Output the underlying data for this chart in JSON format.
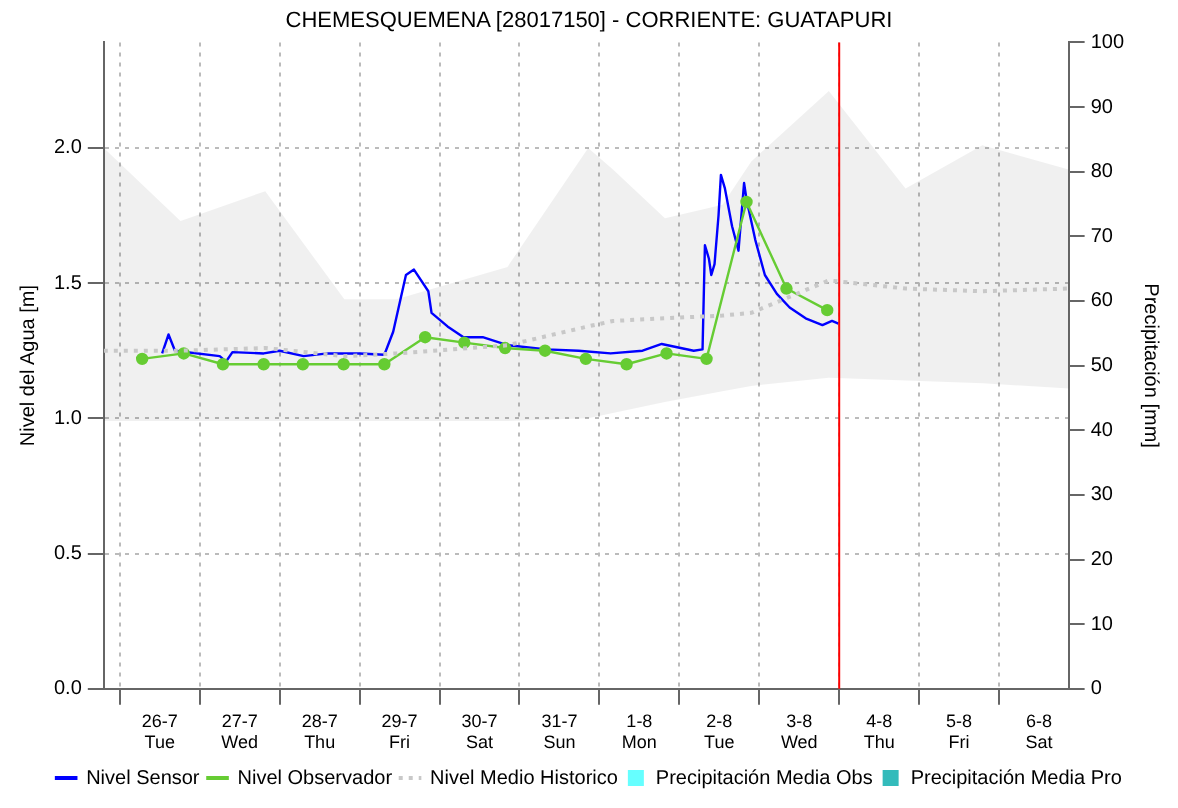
{
  "chart_data": {
    "type": "line",
    "title": "CHEMESQUEMENA [28017150] - CORRIENTE: GUATAPURI",
    "ylabel": "Nivel del Agua [m]",
    "y2label": "Precipitación [mm]",
    "xlim": [
      "--07-25T07:12",
      "--08-06T08:53"
    ],
    "xticks": [
      {
        "value": "--07-26",
        "label": "26-7\nTue"
      },
      {
        "value": "--07-27",
        "label": "27-7\nWed"
      },
      {
        "value": "--07-28",
        "label": "28-7\nThu"
      },
      {
        "value": "--07-29",
        "label": "29-7\nFri"
      },
      {
        "value": "--07-30",
        "label": "30-7\nSat"
      },
      {
        "value": "--07-31",
        "label": "31-7\nSun"
      },
      {
        "value": "--08-01",
        "label": "1-8\nMon"
      },
      {
        "value": "--08-02",
        "label": "2-8\nTue"
      },
      {
        "value": "--08-03",
        "label": "3-8\nWed"
      },
      {
        "value": "--08-04",
        "label": "4-8\nThu"
      },
      {
        "value": "--08-05",
        "label": "5-8\nFri"
      },
      {
        "value": "--08-06",
        "label": "6-8\nSat"
      }
    ],
    "ylim": [
      0,
      2.39
    ],
    "yticks": [
      {
        "value": 0,
        "label": "0.0"
      },
      0.5,
      {
        "value": 1,
        "label": "1.0"
      },
      1.5,
      {
        "value": 2,
        "label": "2.0"
      }
    ],
    "y2lim": [
      0,
      100
    ],
    "y2ticks": [
      0,
      10,
      20,
      30,
      40,
      50,
      60,
      70,
      80,
      90,
      100
    ],
    "grid": true,
    "legend": "bottom",
    "ref_lines": [
      {
        "axis": "x",
        "value": "--08-03T12:00",
        "color": "#ff0000"
      }
    ],
    "series": [
      {
        "name": "Nivel Sensor",
        "color": "#0000ff",
        "marker": "none",
        "line_style": "solid",
        "x": [
          "--07-26T00:43",
          "--07-26T02:38",
          "--07-26T04:34",
          "--07-26T18:00",
          "--07-26T19:55",
          "--07-26T21:50",
          "--07-27T07:12",
          "--07-27T12:00",
          "--07-27T19:12",
          "--07-28T02:24",
          "--07-28T12:00",
          "--07-28T19:26",
          "--07-28T22:05",
          "--07-29T01:55",
          "--07-29T04:19",
          "--07-29T08:38",
          "--07-29T09:36",
          "--07-29T14:24",
          "--07-29T19:12",
          "--07-30T00:58",
          "--07-30T08:38",
          "--07-30T20:10",
          "--07-31T05:46",
          "--07-31T15:22",
          "--08-01T00:58",
          "--08-01T06:43",
          "--08-01T16:19",
          "--08-01T18:58",
          "--08-01T19:41",
          "--08-01T20:53",
          "--08-01T21:36",
          "--08-01T22:34",
          "--08-01T23:46",
          "--08-02T00:29",
          "--08-02T01:41",
          "--08-02T03:50",
          "--08-02T05:46",
          "--08-02T07:26",
          "--08-02T08:10",
          "--08-02T10:48",
          "--08-02T13:41",
          "--08-02T17:17",
          "--08-02T21:07",
          "--08-03T01:55",
          "--08-03T06:58",
          "--08-03T09:50",
          "--08-03T11:46"
        ],
        "values": [
          1.24,
          1.31,
          1.25,
          1.23,
          1.21,
          1.245,
          1.24,
          1.25,
          1.23,
          1.24,
          1.24,
          1.235,
          1.32,
          1.53,
          1.55,
          1.47,
          1.39,
          1.34,
          1.3,
          1.3,
          1.27,
          1.255,
          1.25,
          1.24,
          1.25,
          1.275,
          1.25,
          1.255,
          1.64,
          1.59,
          1.53,
          1.57,
          1.75,
          1.9,
          1.85,
          1.71,
          1.62,
          1.87,
          1.81,
          1.66,
          1.53,
          1.46,
          1.41,
          1.37,
          1.345,
          1.36,
          1.35
        ]
      },
      {
        "name": "Nivel Observador",
        "color": "#66cc33",
        "marker": "circle",
        "line_style": "solid",
        "x": [
          "--07-25T18:43",
          "--07-26T07:12",
          "--07-26T18:58",
          "--07-27T07:12",
          "--07-27T18:58",
          "--07-28T07:12",
          "--07-28T19:26",
          "--07-29T07:41",
          "--07-29T19:26",
          "--07-30T07:41",
          "--07-30T19:41",
          "--07-31T07:55",
          "--07-31T20:10",
          "--08-01T08:10",
          "--08-01T20:10",
          "--08-02T08:10",
          "--08-02T20:10",
          "--08-03T08:24"
        ],
        "values": [
          1.22,
          1.24,
          1.2,
          1.2,
          1.2,
          1.2,
          1.2,
          1.3,
          1.28,
          1.26,
          1.25,
          1.22,
          1.2,
          1.24,
          1.22,
          1.8,
          1.48,
          1.4
        ]
      },
      {
        "name": "Nivel Medio Historico",
        "color": "#c8c8c8",
        "marker": "none",
        "line_style": "dotted",
        "x": [
          "--07-25T07:12",
          "--07-26T06:14",
          "--07-27T07:41",
          "--07-28T07:26",
          "--07-28T23:02",
          "--07-30T08:24",
          "--07-31T08:38",
          "--07-31T16:05",
          "--08-01T07:41",
          "--08-02T00:58",
          "--08-02T09:36",
          "--08-03T08:53",
          "--08-04T07:55",
          "--08-05T06:58",
          "--08-06T08:53"
        ],
        "values": [
          1.25,
          1.25,
          1.26,
          1.23,
          1.24,
          1.27,
          1.34,
          1.36,
          1.37,
          1.38,
          1.39,
          1.51,
          1.48,
          1.47,
          1.48
        ],
        "lower": [
          0.99,
          0.99,
          0.99,
          0.99,
          0.99,
          0.99,
          1.0,
          1.02,
          1.06,
          1.1,
          1.12,
          1.15,
          1.14,
          1.13,
          1.11
        ],
        "upper": [
          2.0,
          1.73,
          1.84,
          1.44,
          1.44,
          1.56,
          2.0,
          1.92,
          1.74,
          1.79,
          1.95,
          2.21,
          1.85,
          2.01,
          1.92
        ]
      },
      {
        "name": "Precipitación Media Obs",
        "type": "bar",
        "color": "#66ffff"
      },
      {
        "name": "Precipitación Media Pro",
        "type": "bar",
        "color": "#33bbbb"
      }
    ]
  }
}
